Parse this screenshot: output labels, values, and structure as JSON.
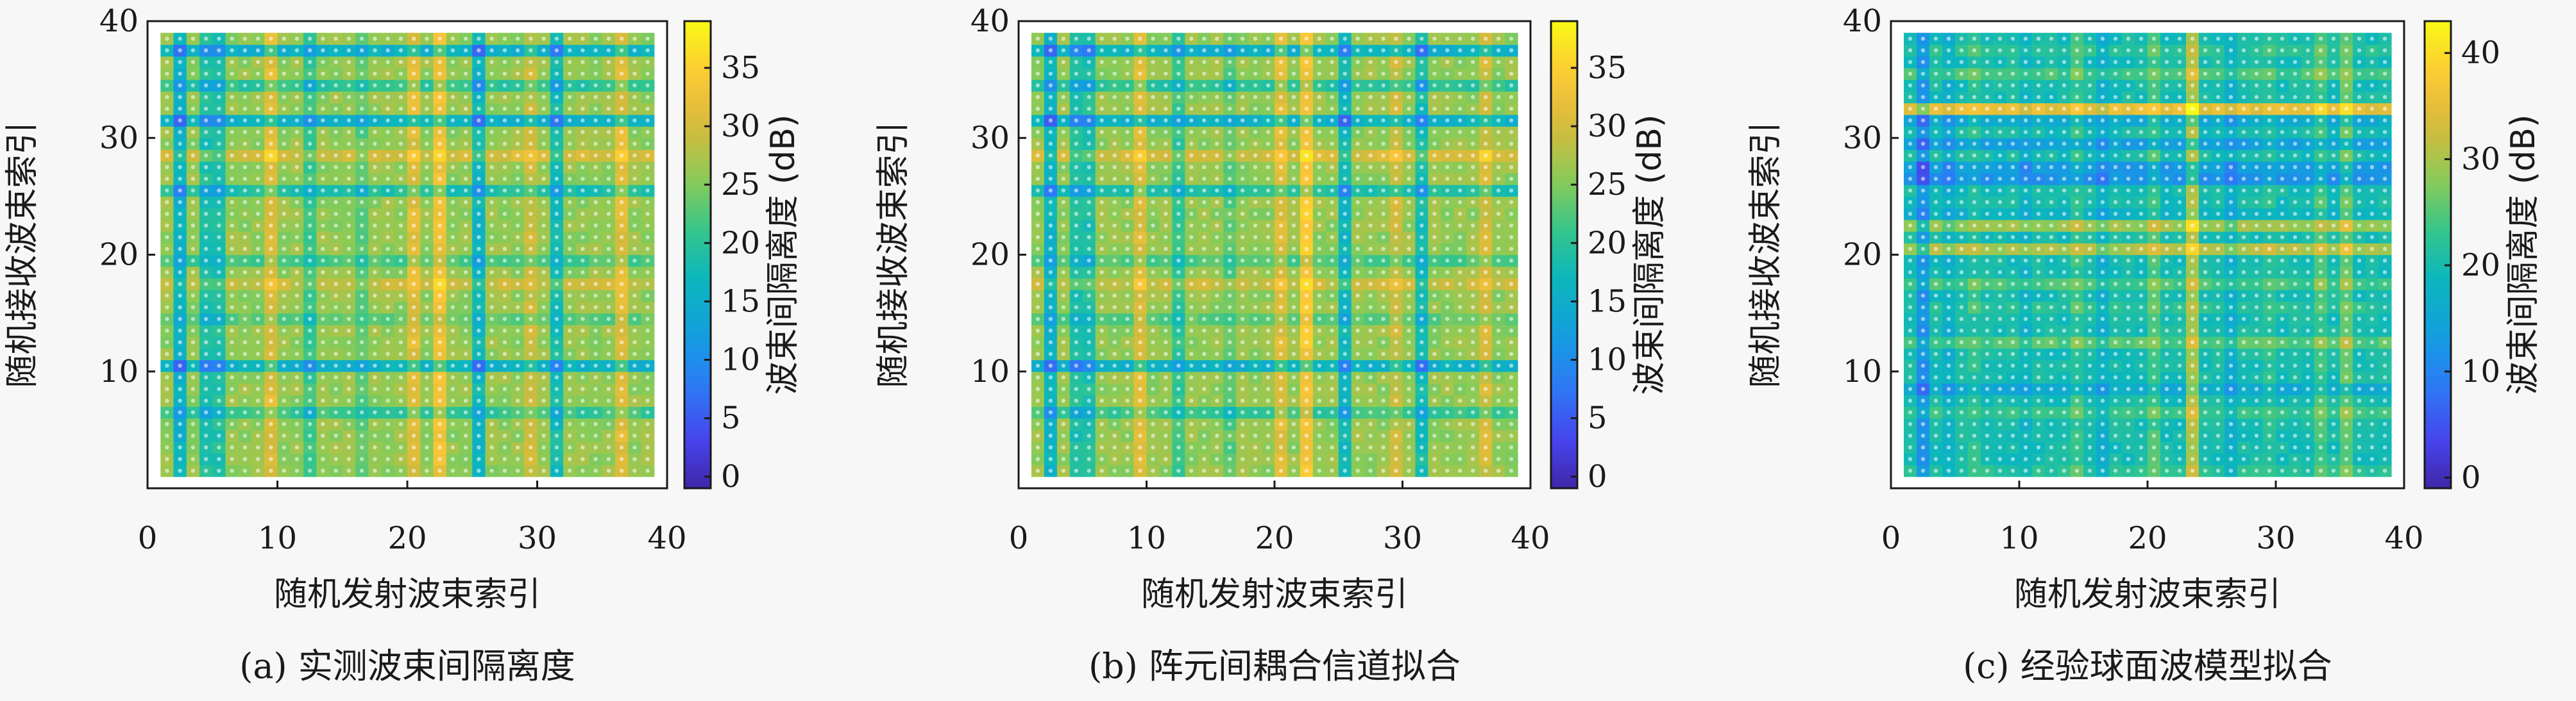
{
  "chart_data": [
    {
      "type": "heatmap",
      "caption": "(a) 实测波束间隔离度",
      "xlabel": "随机发射波束索引",
      "ylabel": "随机接收波束索引",
      "colorbar_label": "波束间隔离度 (dB)",
      "xlim": [
        0,
        40
      ],
      "ylim": [
        0,
        40
      ],
      "xticks": [
        0,
        10,
        20,
        30,
        40
      ],
      "yticks": [
        10,
        20,
        30,
        40
      ],
      "clim": [
        -1,
        39
      ],
      "cticks": [
        0,
        5,
        10,
        15,
        20,
        25,
        30,
        35
      ],
      "grid_size": [
        38,
        38
      ],
      "base_level": 26,
      "x_effects": [
        {
          "index": 2,
          "value": -10
        },
        {
          "index": 4,
          "value": -7
        },
        {
          "index": 5,
          "value": -7
        },
        {
          "index": 9,
          "value": 5
        },
        {
          "index": 12,
          "value": -5
        },
        {
          "index": 16,
          "value": -3
        },
        {
          "index": 20,
          "value": 5
        },
        {
          "index": 22,
          "value": 7
        },
        {
          "index": 25,
          "value": -9
        },
        {
          "index": 29,
          "value": 3
        },
        {
          "index": 31,
          "value": -8
        },
        {
          "index": 36,
          "value": 5
        }
      ],
      "y_effects": [
        {
          "index": 10,
          "value": -10
        },
        {
          "index": 25,
          "value": -7
        },
        {
          "index": 31,
          "value": -10
        },
        {
          "index": 34,
          "value": -6
        },
        {
          "index": 37,
          "value": -10
        },
        {
          "index": 6,
          "value": -5
        },
        {
          "index": 19,
          "value": -4
        },
        {
          "index": 28,
          "value": 4
        },
        {
          "index": 17,
          "value": 3
        },
        {
          "index": 14,
          "value": -3
        }
      ],
      "min_cell_value": 0
    },
    {
      "type": "heatmap",
      "caption": "(b) 阵元间耦合信道拟合",
      "xlabel": "随机发射波束索引",
      "ylabel": "随机接收波束索引",
      "colorbar_label": "波束间隔离度 (dB)",
      "xlim": [
        0,
        40
      ],
      "ylim": [
        0,
        40
      ],
      "xticks": [
        0,
        10,
        20,
        30,
        40
      ],
      "yticks": [
        10,
        20,
        30,
        40
      ],
      "clim": [
        -1,
        39
      ],
      "cticks": [
        0,
        5,
        10,
        15,
        20,
        25,
        30,
        35
      ],
      "grid_size": [
        38,
        38
      ],
      "base_level": 26,
      "x_effects": [
        {
          "index": 2,
          "value": -10
        },
        {
          "index": 4,
          "value": -7
        },
        {
          "index": 5,
          "value": -7
        },
        {
          "index": 9,
          "value": 5
        },
        {
          "index": 12,
          "value": -5
        },
        {
          "index": 16,
          "value": -3
        },
        {
          "index": 20,
          "value": 5
        },
        {
          "index": 22,
          "value": 8
        },
        {
          "index": 25,
          "value": -9
        },
        {
          "index": 29,
          "value": 3
        },
        {
          "index": 31,
          "value": -8
        },
        {
          "index": 36,
          "value": 4
        }
      ],
      "y_effects": [
        {
          "index": 10,
          "value": -10
        },
        {
          "index": 25,
          "value": -7
        },
        {
          "index": 31,
          "value": -10
        },
        {
          "index": 34,
          "value": -6
        },
        {
          "index": 37,
          "value": -10
        },
        {
          "index": 6,
          "value": -5
        },
        {
          "index": 19,
          "value": -4
        },
        {
          "index": 28,
          "value": 4
        },
        {
          "index": 17,
          "value": 3
        },
        {
          "index": 14,
          "value": -3
        }
      ],
      "min_cell_value": 0
    },
    {
      "type": "heatmap",
      "caption": "(c) 经验球面波模型拟合",
      "xlabel": "随机发射波束索引",
      "ylabel": "随机接收波束索引",
      "colorbar_label": "波束间隔离度 (dB)",
      "xlim": [
        0,
        40
      ],
      "ylim": [
        0,
        40
      ],
      "xticks": [
        0,
        10,
        20,
        30,
        40
      ],
      "yticks": [
        10,
        20,
        30,
        40
      ],
      "clim": [
        -1,
        43
      ],
      "cticks": [
        0,
        10,
        20,
        30,
        40
      ],
      "grid_size": [
        38,
        38
      ],
      "base_level": 20,
      "x_effects": [
        {
          "index": 2,
          "value": -8
        },
        {
          "index": 4,
          "value": -3
        },
        {
          "index": 6,
          "value": 2
        },
        {
          "index": 10,
          "value": -2
        },
        {
          "index": 14,
          "value": 3
        },
        {
          "index": 16,
          "value": -3
        },
        {
          "index": 20,
          "value": 4
        },
        {
          "index": 23,
          "value": 10
        },
        {
          "index": 26,
          "value": -3
        },
        {
          "index": 29,
          "value": 2
        },
        {
          "index": 33,
          "value": 4
        },
        {
          "index": 35,
          "value": 6
        }
      ],
      "y_effects": [
        {
          "index": 1,
          "value": 2
        },
        {
          "index": 6,
          "value": 3
        },
        {
          "index": 8,
          "value": -4
        },
        {
          "index": 12,
          "value": 5
        },
        {
          "index": 15,
          "value": 2
        },
        {
          "index": 17,
          "value": 4
        },
        {
          "index": 20,
          "value": 10
        },
        {
          "index": 22,
          "value": 9
        },
        {
          "index": 23,
          "value": -2
        },
        {
          "index": 26,
          "value": -8
        },
        {
          "index": 27,
          "value": -7
        },
        {
          "index": 29,
          "value": -6
        },
        {
          "index": 31,
          "value": -4
        },
        {
          "index": 32,
          "value": 15
        },
        {
          "index": 35,
          "value": 4
        },
        {
          "index": 37,
          "value": 2
        }
      ],
      "min_cell_value": 0
    }
  ]
}
